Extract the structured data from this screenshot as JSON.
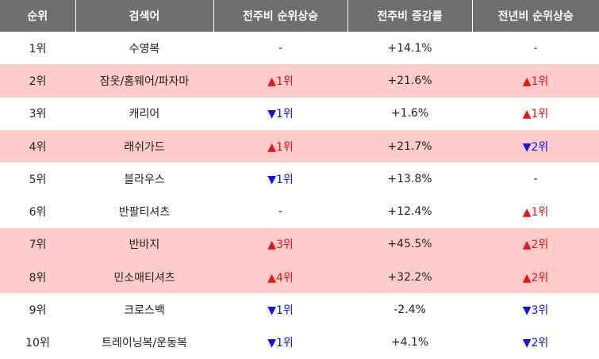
{
  "table": {
    "headers": [
      "순위",
      "검색어",
      "전주비 순위상승",
      "전주비 증감률",
      "전년비 순위상승"
    ],
    "rows": [
      {
        "rank": "1위",
        "term": "수영복",
        "week_change": "-",
        "week_dir": "flat",
        "rate": "+14.1%",
        "year_change": "-",
        "year_dir": "flat",
        "highlight": false
      },
      {
        "rank": "2위",
        "term": "잠옷/홈웨어/파자마",
        "week_change": "▲1위",
        "week_dir": "up",
        "rate": "+21.6%",
        "year_change": "▲1위",
        "year_dir": "up",
        "highlight": true
      },
      {
        "rank": "3위",
        "term": "캐리어",
        "week_change": "▼1위",
        "week_dir": "down",
        "rate": "+1.6%",
        "year_change": "▲1위",
        "year_dir": "up",
        "highlight": false
      },
      {
        "rank": "4위",
        "term": "래쉬가드",
        "week_change": "▲1위",
        "week_dir": "up",
        "rate": "+21.7%",
        "year_change": "▼2위",
        "year_dir": "down",
        "highlight": true
      },
      {
        "rank": "5위",
        "term": "블라우스",
        "week_change": "▼1위",
        "week_dir": "down",
        "rate": "+13.8%",
        "year_change": "-",
        "year_dir": "flat",
        "highlight": false
      },
      {
        "rank": "6위",
        "term": "반팔티셔츠",
        "week_change": "-",
        "week_dir": "flat",
        "rate": "+12.4%",
        "year_change": "▲1위",
        "year_dir": "up",
        "highlight": false
      },
      {
        "rank": "7위",
        "term": "반바지",
        "week_change": "▲3위",
        "week_dir": "up",
        "rate": "+45.5%",
        "year_change": "▲2위",
        "year_dir": "up",
        "highlight": true
      },
      {
        "rank": "8위",
        "term": "민소매티셔츠",
        "week_change": "▲4위",
        "week_dir": "up",
        "rate": "+32.2%",
        "year_change": "▲2위",
        "year_dir": "up",
        "highlight": true
      },
      {
        "rank": "9위",
        "term": "크로스백",
        "week_change": "▼1위",
        "week_dir": "down",
        "rate": "-2.4%",
        "year_change": "▼3위",
        "year_dir": "down",
        "highlight": false
      },
      {
        "rank": "10위",
        "term": "트레이닝복/운동복",
        "week_change": "▼1위",
        "week_dir": "down",
        "rate": "+4.1%",
        "year_change": "▼2위",
        "year_dir": "down",
        "highlight": false
      }
    ]
  },
  "colors": {
    "header_bg": "#6e6e6e",
    "highlight_bg": "#fecccb",
    "up": "#ee1111",
    "down": "#1111ee"
  }
}
